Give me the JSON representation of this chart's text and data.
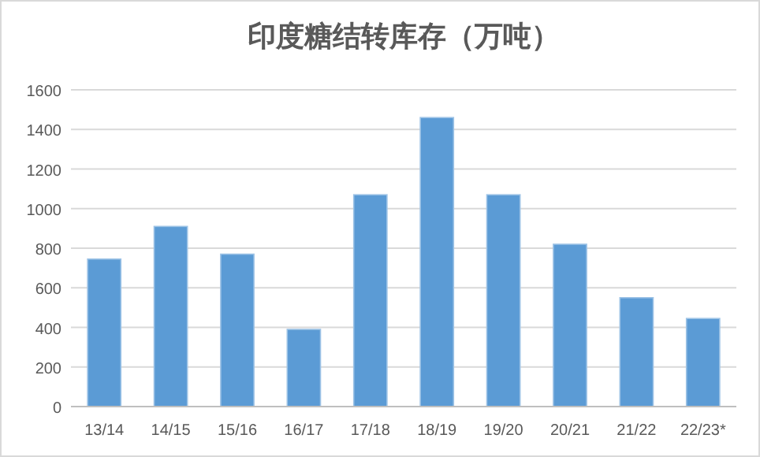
{
  "chart_data": {
    "type": "bar",
    "title": "印度糖结转库存（万吨）",
    "categories": [
      "13/14",
      "14/15",
      "15/16",
      "16/17",
      "17/18",
      "18/19",
      "19/20",
      "20/21",
      "21/22",
      "22/23*"
    ],
    "values": [
      745,
      910,
      770,
      390,
      1070,
      1460,
      1070,
      820,
      550,
      445
    ],
    "color": "#5b9bd5",
    "ylim": [
      0,
      1600
    ],
    "yticks": [
      0,
      200,
      400,
      600,
      800,
      1000,
      1200,
      1400,
      1600
    ],
    "grid": "y"
  }
}
